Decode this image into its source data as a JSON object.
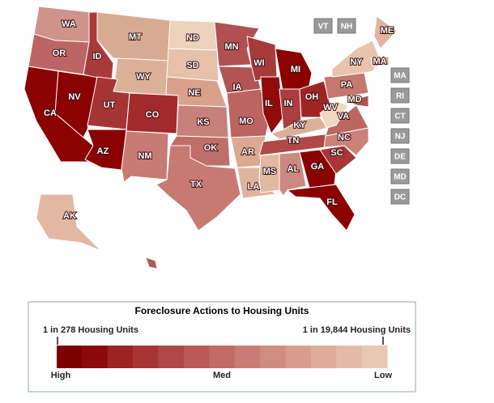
{
  "map": {
    "states": [
      {
        "label": "WA",
        "color": "#cf938a"
      },
      {
        "label": "OR",
        "color": "#bd6464"
      },
      {
        "label": "CA",
        "color": "#8b0000"
      },
      {
        "label": "NV",
        "color": "#8b0000"
      },
      {
        "label": "ID",
        "color": "#a93a3a"
      },
      {
        "label": "MT",
        "color": "#d9aa92"
      },
      {
        "label": "WY",
        "color": "#dcb096"
      },
      {
        "label": "UT",
        "color": "#a53434"
      },
      {
        "label": "AZ",
        "color": "#8b0000"
      },
      {
        "label": "CO",
        "color": "#a22a2a"
      },
      {
        "label": "NM",
        "color": "#c77b73"
      },
      {
        "label": "ND",
        "color": "#edd2bc"
      },
      {
        "label": "SD",
        "color": "#e6c0a8"
      },
      {
        "label": "NE",
        "color": "#d9a08a"
      },
      {
        "label": "KS",
        "color": "#c8807a"
      },
      {
        "label": "OK",
        "color": "#bf6e68"
      },
      {
        "label": "TX",
        "color": "#c77a72"
      },
      {
        "label": "MN",
        "color": "#b25050"
      },
      {
        "label": "IA",
        "color": "#b25454"
      },
      {
        "label": "MO",
        "color": "#bc6460"
      },
      {
        "label": "AR",
        "color": "#dba890"
      },
      {
        "label": "LA",
        "color": "#e0b49c"
      },
      {
        "label": "WI",
        "color": "#a93a3a"
      },
      {
        "label": "IL",
        "color": "#920a0a"
      },
      {
        "label": "MI",
        "color": "#8b0000"
      },
      {
        "label": "IN",
        "color": "#ab3f3f"
      },
      {
        "label": "OH",
        "color": "#9f2424"
      },
      {
        "label": "KY",
        "color": "#dab09a"
      },
      {
        "label": "TN",
        "color": "#b04848"
      },
      {
        "label": "MS",
        "color": "#e3b8a0"
      },
      {
        "label": "AL",
        "color": "#cb8a80"
      },
      {
        "label": "GA",
        "color": "#8b0000"
      },
      {
        "label": "FL",
        "color": "#8b0000"
      },
      {
        "label": "SC",
        "color": "#a73636"
      },
      {
        "label": "NC",
        "color": "#c98278"
      },
      {
        "label": "VA",
        "color": "#bc6660"
      },
      {
        "label": "WV",
        "color": "#f0d8c0"
      },
      {
        "label": "PA",
        "color": "#c4786e"
      },
      {
        "label": "NY",
        "color": "#e8c4ae"
      },
      {
        "label": "ME",
        "color": "#e3b2a0"
      },
      {
        "label": "MD",
        "color": "#b05050"
      },
      {
        "label": "MA",
        "color": "#d9a892"
      },
      {
        "label": "AK",
        "color": "#e2b8a2"
      },
      {
        "label": null,
        "color": "#b25a56"
      }
    ],
    "small_states": [
      "VT",
      "NH",
      "MA",
      "RI",
      "CT",
      "NJ",
      "DE",
      "MD",
      "DC"
    ],
    "legend": {
      "title": "Foreclosure Actions to Housing Units",
      "left_label": "1 in 278 Housing Units",
      "right_label": "1 in 19,844 Housing Units",
      "colors": [
        "#7d0000",
        "#8e0a0a",
        "#9e2222",
        "#a83434",
        "#b04848",
        "#ba5a56",
        "#c26a64",
        "#ca7c74",
        "#d18c80",
        "#d89c8c",
        "#deac98",
        "#e4baa6",
        "#e9c8b2"
      ],
      "high": "High",
      "med": "Med",
      "low": "Low"
    }
  }
}
